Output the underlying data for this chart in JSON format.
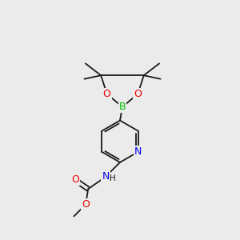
{
  "background_color": "#ebebeb",
  "bond_color": "#1a1a1a",
  "bond_lw": 1.3,
  "B_color": "#00bb00",
  "O_color": "#ee0000",
  "N_color": "#0000ee",
  "figsize": [
    3.0,
    3.0
  ],
  "dpi": 100,
  "xlim": [
    0,
    10
  ],
  "ylim": [
    0,
    10
  ]
}
